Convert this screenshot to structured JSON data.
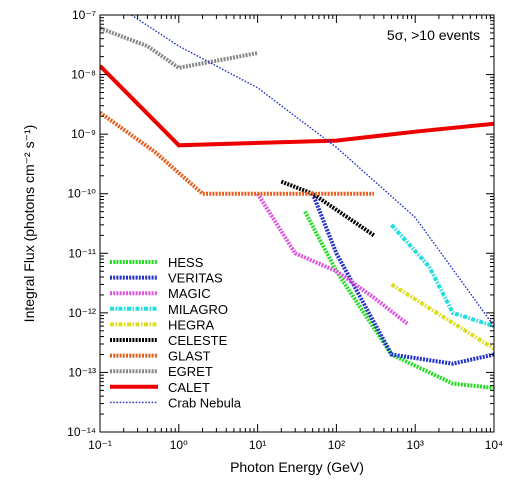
{
  "chart_data": {
    "type": "line",
    "title": "",
    "annotation": "5σ, >10 events",
    "xlabel": "Photon Energy (GeV)",
    "ylabel": "Integral Flux (photons cm⁻² s⁻¹)",
    "x_scale": "log",
    "y_scale": "log",
    "xlim": [
      0.1,
      10000
    ],
    "ylim": [
      1e-14,
      1e-07
    ],
    "x_ticks": [
      {
        "value": 0.1,
        "label": "10⁻¹"
      },
      {
        "value": 1,
        "label": "10⁰"
      },
      {
        "value": 10,
        "label": "10¹"
      },
      {
        "value": 100,
        "label": "10²"
      },
      {
        "value": 1000,
        "label": "10³"
      },
      {
        "value": 10000,
        "label": "10⁴"
      }
    ],
    "y_ticks": [
      {
        "value": 1e-14,
        "label": "10⁻¹⁴"
      },
      {
        "value": 1e-13,
        "label": "10⁻¹³"
      },
      {
        "value": 1e-12,
        "label": "10⁻¹²"
      },
      {
        "value": 1e-11,
        "label": "10⁻¹¹"
      },
      {
        "value": 1e-10,
        "label": "10⁻¹⁰"
      },
      {
        "value": 1e-09,
        "label": "10⁻⁹"
      },
      {
        "value": 1e-08,
        "label": "10⁻⁸"
      },
      {
        "value": 1e-07,
        "label": "10⁻⁷"
      }
    ],
    "grid": false,
    "legend_position": "bottom-left",
    "series": [
      {
        "name": "HESS",
        "color": "#22dd22",
        "style": "dotted-thick",
        "x": [
          40,
          100,
          500,
          3000,
          10000
        ],
        "y": [
          5e-11,
          5e-12,
          2e-13,
          6.5e-14,
          5.5e-14
        ]
      },
      {
        "name": "VERITAS",
        "color": "#2233cc",
        "style": "dotted-thick",
        "x": [
          50,
          100,
          500,
          3000,
          10000
        ],
        "y": [
          1e-10,
          1e-11,
          2e-13,
          1.4e-13,
          2e-13
        ]
      },
      {
        "name": "MAGIC",
        "color": "#dd55dd",
        "style": "dotted-thick",
        "x": [
          10,
          30,
          100,
          300,
          800
        ],
        "y": [
          1e-10,
          1e-11,
          5e-12,
          1.8e-12,
          6.5e-13
        ]
      },
      {
        "name": "MILAGRO",
        "color": "#22dddd",
        "style": "dash-dot-thick",
        "x": [
          500,
          1500,
          3000,
          10000
        ],
        "y": [
          3e-11,
          6e-12,
          1e-12,
          6e-13
        ]
      },
      {
        "name": "HEGRA",
        "color": "#dddd22",
        "style": "dash-dot-thick",
        "x": [
          500,
          10000
        ],
        "y": [
          3e-12,
          2.5e-13
        ]
      },
      {
        "name": "CELESTE",
        "color": "#000000",
        "style": "dotted-thick",
        "x": [
          20,
          50,
          300
        ],
        "y": [
          1.6e-10,
          1e-10,
          2e-11
        ]
      },
      {
        "name": "GLAST",
        "color": "#e06020",
        "style": "dotted-thick",
        "x": [
          0.1,
          0.5,
          2,
          300
        ],
        "y": [
          2.3e-09,
          5e-10,
          1e-10,
          1e-10
        ]
      },
      {
        "name": "EGRET",
        "color": "#888888",
        "style": "dotted-thick",
        "x": [
          0.1,
          0.4,
          1,
          10
        ],
        "y": [
          6e-08,
          3e-08,
          1.3e-08,
          2.3e-08
        ]
      },
      {
        "name": "CALET",
        "color": "#ee0000",
        "style": "solid-thick",
        "x": [
          0.1,
          1,
          100,
          1000,
          10000
        ],
        "y": [
          1.4e-08,
          6.5e-10,
          7.8e-10,
          1.1e-09,
          1.5e-09
        ]
      },
      {
        "name": "Crab Nebula",
        "color": "#2233cc",
        "style": "dotted-thin",
        "x": [
          0.25,
          1,
          10,
          100,
          1000,
          10000
        ],
        "y": [
          1e-07,
          3e-08,
          6e-09,
          6e-10,
          4e-11,
          6e-13
        ]
      }
    ]
  }
}
